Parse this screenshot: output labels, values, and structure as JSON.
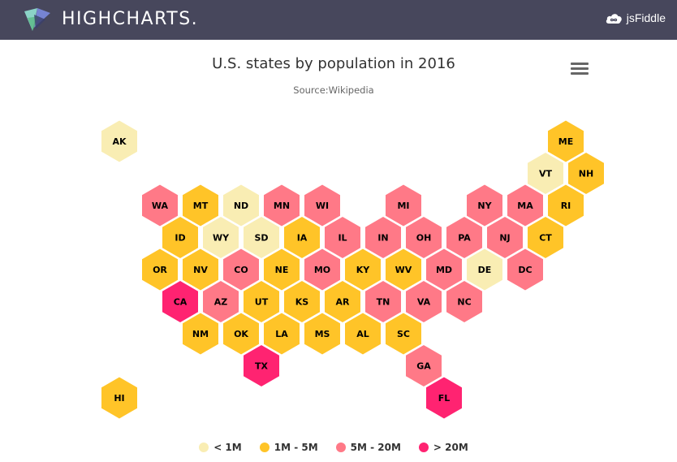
{
  "topbar": {
    "brand": "HIGHCHARTS.",
    "link_label": "jsFiddle"
  },
  "colors": {
    "topbar_bg": "#47475c",
    "under_1m": "#F9EDB3",
    "1m_5m": "#FFC428",
    "5m_20m": "#FF7987",
    "over_20m": "#FF2371"
  },
  "chart_data": {
    "type": "tilemap-hexagon",
    "title": "U.S. states by population in 2016",
    "subtitle": "Source:Wikipedia",
    "color_classes": [
      {
        "key": "under_1m",
        "label": "< 1M"
      },
      {
        "key": "1m_5m",
        "label": "1M - 5M"
      },
      {
        "key": "5m_20m",
        "label": "5M - 20M"
      },
      {
        "key": "over_20m",
        "label": "> 20M"
      }
    ],
    "states": [
      {
        "code": "AK",
        "class": "under_1m",
        "row": 0,
        "col": 0
      },
      {
        "code": "ME",
        "class": "1m_5m",
        "row": 0,
        "col": 11
      },
      {
        "code": "VT",
        "class": "under_1m",
        "row": 1,
        "col": 10
      },
      {
        "code": "NH",
        "class": "1m_5m",
        "row": 1,
        "col": 11
      },
      {
        "code": "WA",
        "class": "5m_20m",
        "row": 2,
        "col": 1
      },
      {
        "code": "MT",
        "class": "1m_5m",
        "row": 2,
        "col": 2
      },
      {
        "code": "ND",
        "class": "under_1m",
        "row": 2,
        "col": 3
      },
      {
        "code": "MN",
        "class": "5m_20m",
        "row": 2,
        "col": 4
      },
      {
        "code": "WI",
        "class": "5m_20m",
        "row": 2,
        "col": 5
      },
      {
        "code": "MI",
        "class": "5m_20m",
        "row": 2,
        "col": 7
      },
      {
        "code": "NY",
        "class": "5m_20m",
        "row": 2,
        "col": 9
      },
      {
        "code": "MA",
        "class": "5m_20m",
        "row": 2,
        "col": 10
      },
      {
        "code": "RI",
        "class": "1m_5m",
        "row": 2,
        "col": 11
      },
      {
        "code": "ID",
        "class": "1m_5m",
        "row": 3,
        "col": 1
      },
      {
        "code": "WY",
        "class": "under_1m",
        "row": 3,
        "col": 2
      },
      {
        "code": "SD",
        "class": "under_1m",
        "row": 3,
        "col": 3
      },
      {
        "code": "IA",
        "class": "1m_5m",
        "row": 3,
        "col": 4
      },
      {
        "code": "IL",
        "class": "5m_20m",
        "row": 3,
        "col": 5
      },
      {
        "code": "IN",
        "class": "5m_20m",
        "row": 3,
        "col": 6
      },
      {
        "code": "OH",
        "class": "5m_20m",
        "row": 3,
        "col": 7
      },
      {
        "code": "PA",
        "class": "5m_20m",
        "row": 3,
        "col": 8
      },
      {
        "code": "NJ",
        "class": "5m_20m",
        "row": 3,
        "col": 9
      },
      {
        "code": "CT",
        "class": "1m_5m",
        "row": 3,
        "col": 10
      },
      {
        "code": "OR",
        "class": "1m_5m",
        "row": 4,
        "col": 1
      },
      {
        "code": "NV",
        "class": "1m_5m",
        "row": 4,
        "col": 2
      },
      {
        "code": "CO",
        "class": "5m_20m",
        "row": 4,
        "col": 3
      },
      {
        "code": "NE",
        "class": "1m_5m",
        "row": 4,
        "col": 4
      },
      {
        "code": "MO",
        "class": "5m_20m",
        "row": 4,
        "col": 5
      },
      {
        "code": "KY",
        "class": "1m_5m",
        "row": 4,
        "col": 6
      },
      {
        "code": "WV",
        "class": "1m_5m",
        "row": 4,
        "col": 7
      },
      {
        "code": "MD",
        "class": "5m_20m",
        "row": 4,
        "col": 8
      },
      {
        "code": "DE",
        "class": "under_1m",
        "row": 4,
        "col": 9
      },
      {
        "code": "DC",
        "class": "5m_20m",
        "row": 4,
        "col": 10
      },
      {
        "code": "CA",
        "class": "over_20m",
        "row": 5,
        "col": 1
      },
      {
        "code": "AZ",
        "class": "5m_20m",
        "row": 5,
        "col": 2
      },
      {
        "code": "UT",
        "class": "1m_5m",
        "row": 5,
        "col": 3
      },
      {
        "code": "KS",
        "class": "1m_5m",
        "row": 5,
        "col": 4
      },
      {
        "code": "AR",
        "class": "1m_5m",
        "row": 5,
        "col": 5
      },
      {
        "code": "TN",
        "class": "5m_20m",
        "row": 5,
        "col": 6
      },
      {
        "code": "VA",
        "class": "5m_20m",
        "row": 5,
        "col": 7
      },
      {
        "code": "NC",
        "class": "5m_20m",
        "row": 5,
        "col": 8
      },
      {
        "code": "NM",
        "class": "1m_5m",
        "row": 6,
        "col": 2
      },
      {
        "code": "OK",
        "class": "1m_5m",
        "row": 6,
        "col": 3
      },
      {
        "code": "LA",
        "class": "1m_5m",
        "row": 6,
        "col": 4
      },
      {
        "code": "MS",
        "class": "1m_5m",
        "row": 6,
        "col": 5
      },
      {
        "code": "AL",
        "class": "1m_5m",
        "row": 6,
        "col": 6
      },
      {
        "code": "SC",
        "class": "1m_5m",
        "row": 6,
        "col": 7
      },
      {
        "code": "TX",
        "class": "over_20m",
        "row": 7,
        "col": 3
      },
      {
        "code": "GA",
        "class": "5m_20m",
        "row": 7,
        "col": 7
      },
      {
        "code": "HI",
        "class": "1m_5m",
        "row": 8,
        "col": 0
      },
      {
        "code": "FL",
        "class": "over_20m",
        "row": 8,
        "col": 8
      }
    ]
  }
}
